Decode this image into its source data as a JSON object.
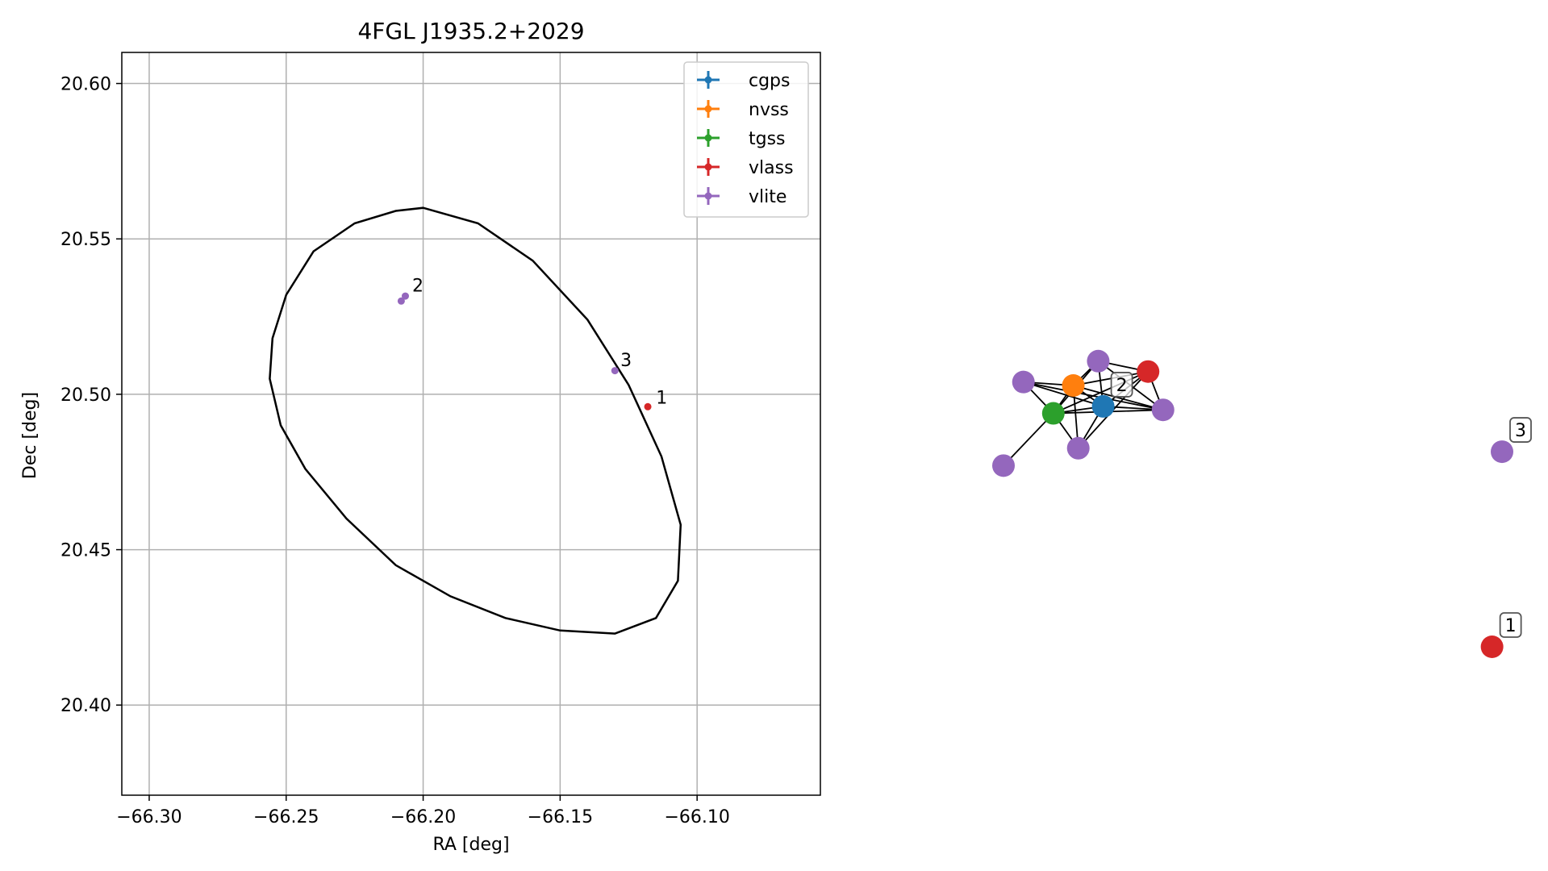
{
  "chart_data": [
    {
      "type": "scatter",
      "title": "4FGL J1935.2+2029",
      "xlabel": "RA [deg]",
      "ylabel": "Dec [deg]",
      "xlim": [
        -66.31,
        -66.055
      ],
      "ylim": [
        20.371,
        20.61
      ],
      "xticks": [
        -66.3,
        -66.25,
        -66.2,
        -66.15,
        -66.1
      ],
      "xtick_labels": [
        "−66.30",
        "−66.25",
        "−66.20",
        "−66.15",
        "−66.10"
      ],
      "yticks": [
        20.4,
        20.45,
        20.5,
        20.55,
        20.6
      ],
      "ytick_labels": [
        "20.40",
        "20.45",
        "20.50",
        "20.55",
        "20.60"
      ],
      "grid": true,
      "legend_position": "top-right",
      "legend": [
        {
          "label": "cgps",
          "color": "#1f77b4"
        },
        {
          "label": "nvss",
          "color": "#ff7f0e"
        },
        {
          "label": "tgss",
          "color": "#2ca02c"
        },
        {
          "label": "vlass",
          "color": "#d62728"
        },
        {
          "label": "vlite",
          "color": "#9467bd"
        }
      ],
      "ellipse": [
        [
          -66.2,
          20.56
        ],
        [
          -66.18,
          20.555
        ],
        [
          -66.16,
          20.543
        ],
        [
          -66.14,
          20.524
        ],
        [
          -66.125,
          20.503
        ],
        [
          -66.113,
          20.48
        ],
        [
          -66.106,
          20.458
        ],
        [
          -66.107,
          20.44
        ],
        [
          -66.115,
          20.428
        ],
        [
          -66.13,
          20.423
        ],
        [
          -66.15,
          20.424
        ],
        [
          -66.17,
          20.428
        ],
        [
          -66.19,
          20.435
        ],
        [
          -66.21,
          20.445
        ],
        [
          -66.228,
          20.46
        ],
        [
          -66.243,
          20.476
        ],
        [
          -66.252,
          20.49
        ],
        [
          -66.256,
          20.505
        ],
        [
          -66.255,
          20.518
        ],
        [
          -66.25,
          20.532
        ],
        [
          -66.24,
          20.546
        ],
        [
          -66.225,
          20.555
        ],
        [
          -66.21,
          20.559
        ],
        [
          -66.2,
          20.56
        ]
      ],
      "points": [
        {
          "survey": "vlite",
          "ra": -66.2065,
          "dec": 20.5316,
          "color": "#9467bd"
        },
        {
          "survey": "vlite",
          "ra": -66.208,
          "dec": 20.53,
          "color": "#9467bd"
        },
        {
          "survey": "vlite",
          "ra": -66.13,
          "dec": 20.5076,
          "color": "#9467bd"
        },
        {
          "survey": "vlass",
          "ra": -66.118,
          "dec": 20.496,
          "color": "#d62728"
        }
      ],
      "annotations": [
        {
          "text": "2",
          "ra": -66.204,
          "dec": 20.533
        },
        {
          "text": "3",
          "ra": -66.128,
          "dec": 20.509
        },
        {
          "text": "1",
          "ra": -66.115,
          "dec": 20.497
        }
      ]
    },
    {
      "type": "network",
      "nodes": [
        {
          "id": "A",
          "color": "#9467bd",
          "x": 0.19,
          "y": 0.18
        },
        {
          "id": "B",
          "color": "#d62728",
          "x": 0.29,
          "y": 0.21
        },
        {
          "id": "C",
          "color": "#9467bd",
          "x": 0.04,
          "y": 0.24
        },
        {
          "id": "D",
          "color": "#ff7f0e",
          "x": 0.14,
          "y": 0.25
        },
        {
          "id": "E",
          "color": "#1f77b4",
          "x": 0.2,
          "y": 0.31
        },
        {
          "id": "F",
          "color": "#2ca02c",
          "x": 0.1,
          "y": 0.33
        },
        {
          "id": "G",
          "color": "#9467bd",
          "x": 0.32,
          "y": 0.32
        },
        {
          "id": "H",
          "color": "#9467bd",
          "x": 0.15,
          "y": 0.43
        },
        {
          "id": "I",
          "color": "#9467bd",
          "x": 0.0,
          "y": 0.48
        },
        {
          "id": "J",
          "color": "#9467bd",
          "x": 1.0,
          "y": 0.44
        },
        {
          "id": "K",
          "color": "#d62728",
          "x": 0.98,
          "y": 1.0
        }
      ],
      "edges": [
        [
          "A",
          "B"
        ],
        [
          "A",
          "D"
        ],
        [
          "A",
          "E"
        ],
        [
          "A",
          "F"
        ],
        [
          "A",
          "G"
        ],
        [
          "B",
          "D"
        ],
        [
          "B",
          "E"
        ],
        [
          "B",
          "F"
        ],
        [
          "B",
          "G"
        ],
        [
          "B",
          "H"
        ],
        [
          "C",
          "D"
        ],
        [
          "C",
          "E"
        ],
        [
          "C",
          "F"
        ],
        [
          "C",
          "G"
        ],
        [
          "D",
          "E"
        ],
        [
          "D",
          "F"
        ],
        [
          "D",
          "G"
        ],
        [
          "D",
          "H"
        ],
        [
          "E",
          "F"
        ],
        [
          "E",
          "G"
        ],
        [
          "E",
          "H"
        ],
        [
          "F",
          "G"
        ],
        [
          "F",
          "H"
        ],
        [
          "F",
          "I"
        ]
      ],
      "labels": [
        {
          "text": "2",
          "node": "E"
        },
        {
          "text": "3",
          "node": "J"
        },
        {
          "text": "1",
          "node": "K"
        }
      ]
    }
  ]
}
